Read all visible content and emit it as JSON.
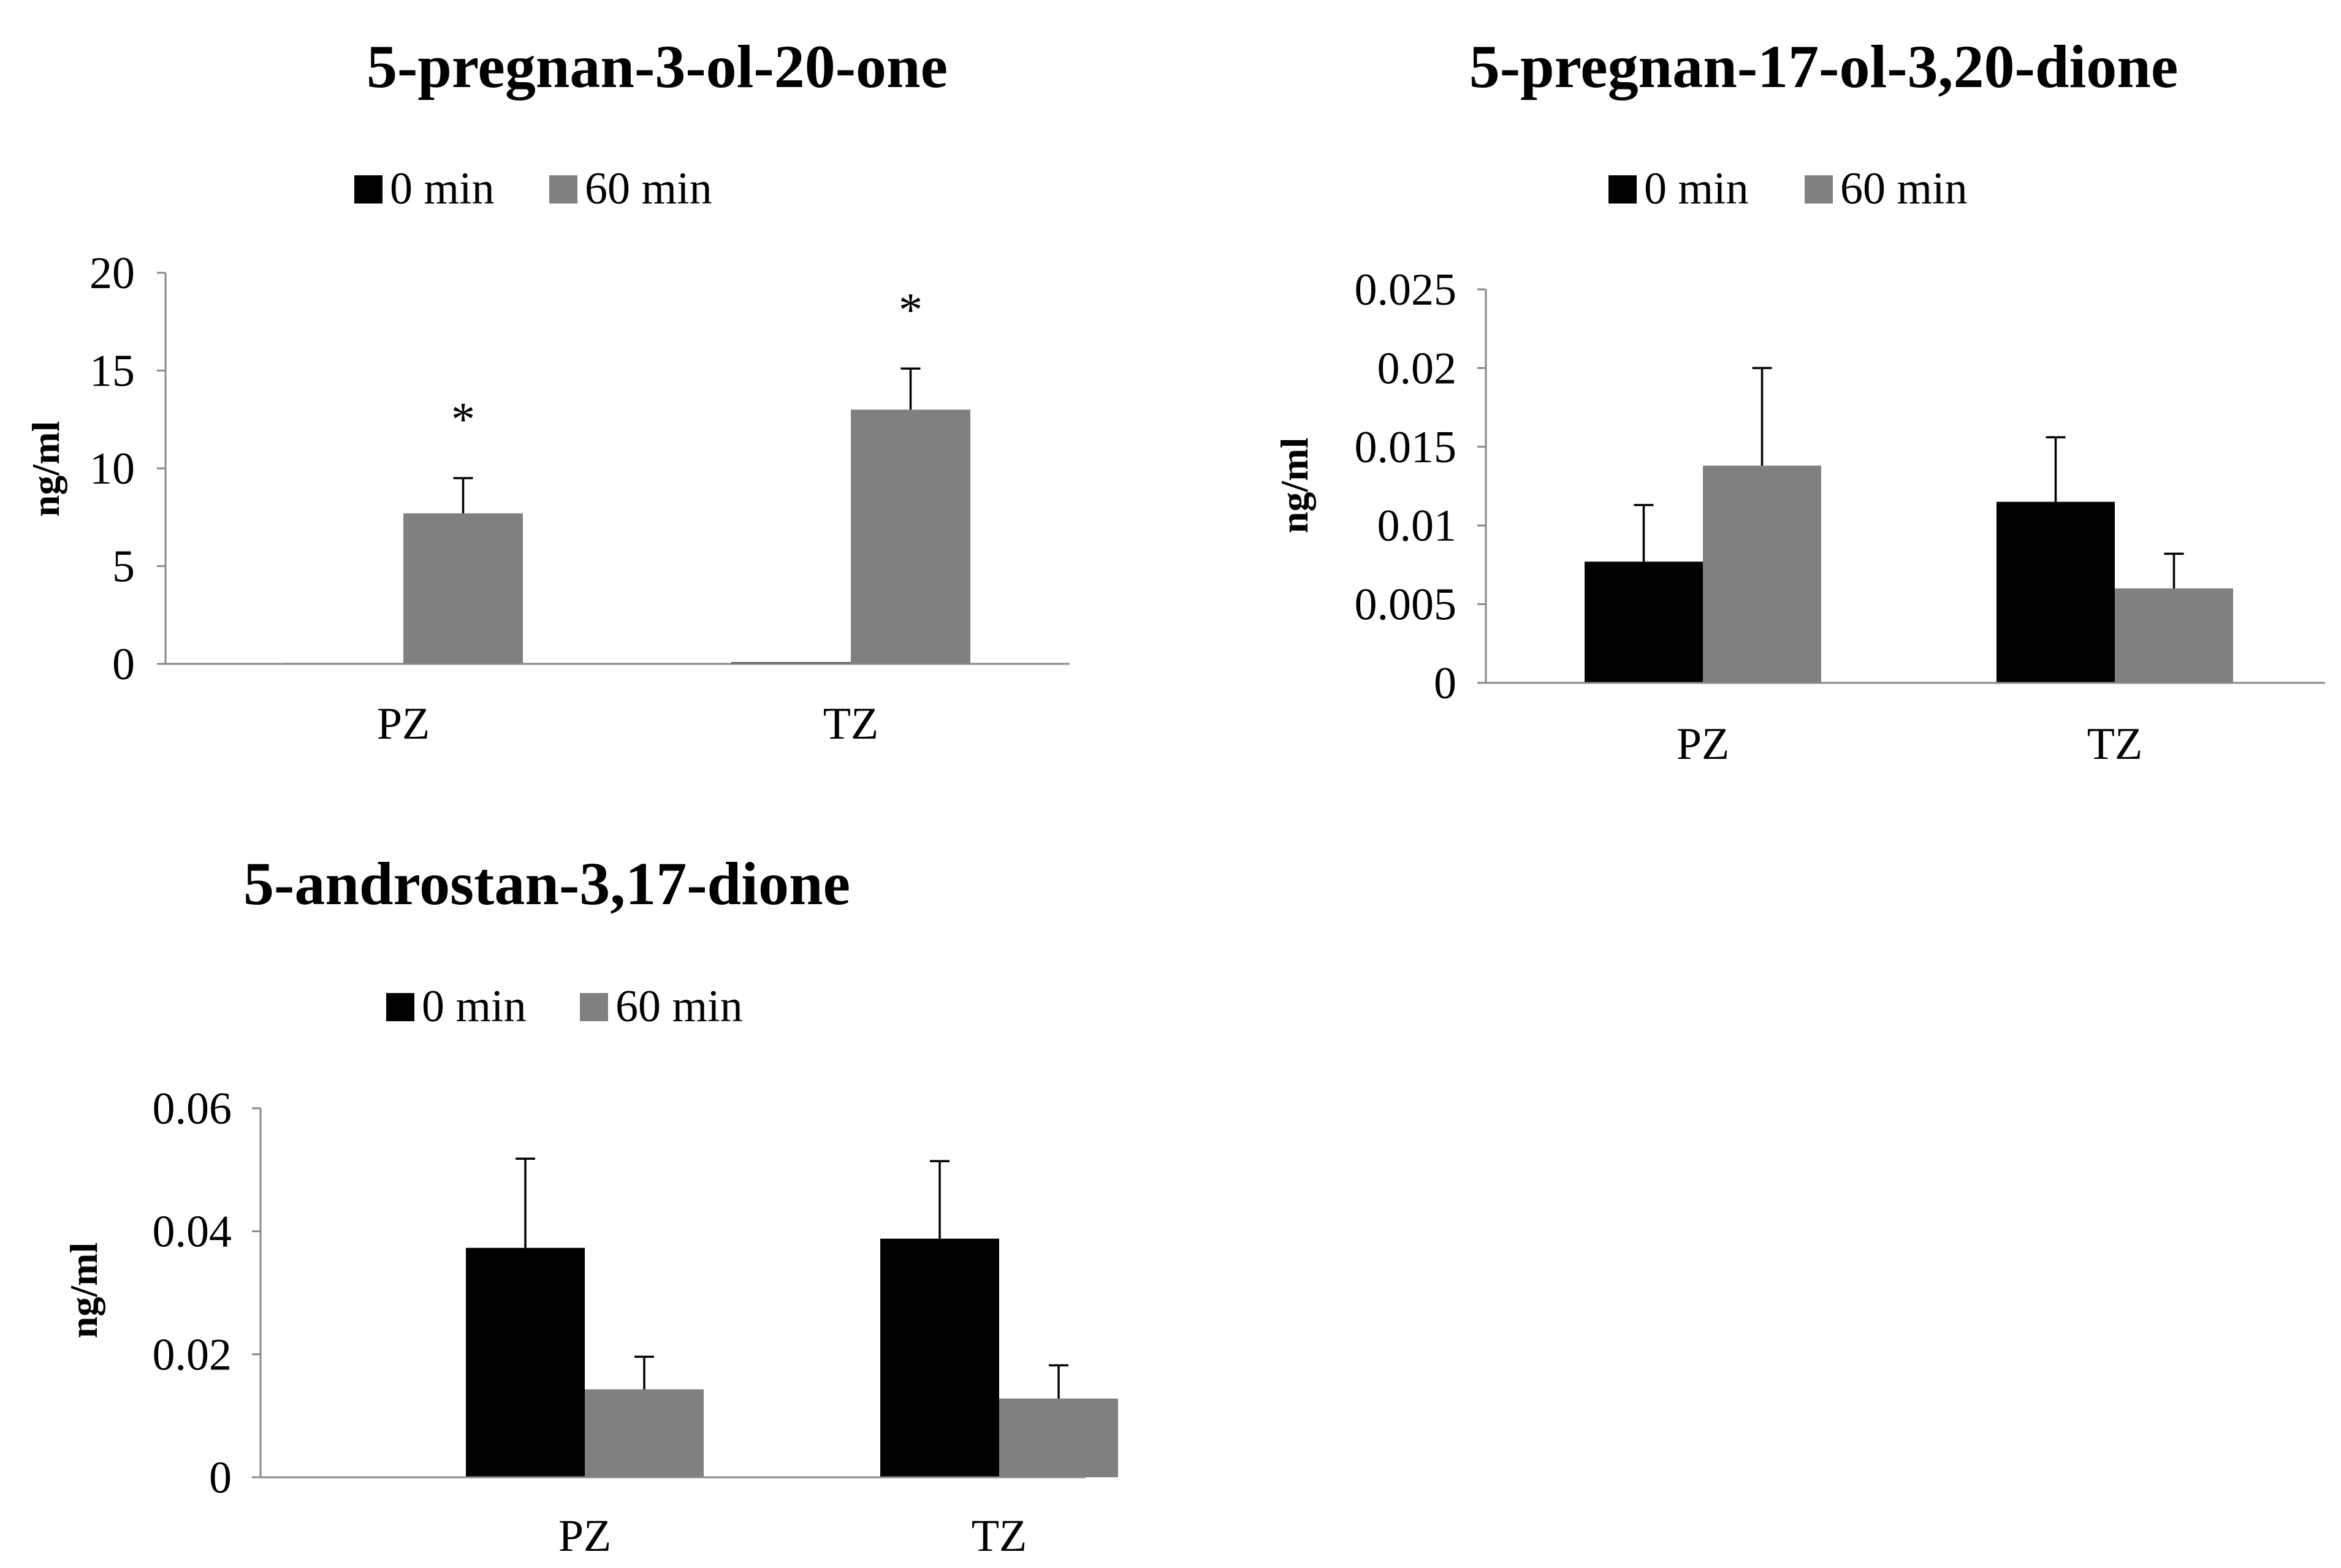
{
  "chart_data": [
    {
      "type": "bar",
      "title": "5-pregnan-3-ol-20-one",
      "xlabel": "",
      "ylabel": "ng/ml",
      "categories": [
        "PZ",
        "TZ"
      ],
      "ylim": [
        0,
        20
      ],
      "yticks": [
        "0",
        "5",
        "10",
        "15",
        "20"
      ],
      "ytick_values": [
        0,
        5,
        10,
        15,
        20
      ],
      "legend": "top-center",
      "series": [
        {
          "name": "0 min",
          "color": "#000000",
          "values": [
            0.05,
            0.08
          ],
          "errors": [
            0,
            0
          ]
        },
        {
          "name": "60 min",
          "color": "#808080",
          "values": [
            7.7,
            13.0
          ],
          "errors": [
            1.8,
            2.1
          ]
        }
      ],
      "annotations": [
        {
          "category": "PZ",
          "series": "60 min",
          "text": "*"
        },
        {
          "category": "TZ",
          "series": "60 min",
          "text": "*"
        }
      ]
    },
    {
      "type": "bar",
      "title": "5-pregnan-17-ol-3,20-dione",
      "xlabel": "",
      "ylabel": "ng/ml",
      "categories": [
        "PZ",
        "TZ"
      ],
      "ylim": [
        0,
        0.025
      ],
      "yticks": [
        "0",
        "0.005",
        "0.01",
        "0.015",
        "0.02",
        "0.025"
      ],
      "ytick_values": [
        0,
        0.005,
        0.01,
        0.015,
        0.02,
        0.025
      ],
      "legend": "top-center",
      "series": [
        {
          "name": "0 min",
          "color": "#000000",
          "values": [
            0.0077,
            0.0115
          ],
          "errors": [
            0.0036,
            0.0041
          ]
        },
        {
          "name": "60 min",
          "color": "#808080",
          "values": [
            0.0138,
            0.006
          ],
          "errors": [
            0.0062,
            0.0022
          ]
        }
      ],
      "annotations": []
    },
    {
      "type": "bar",
      "title": "5-androstan-3,17-dione",
      "xlabel": "",
      "ylabel": "ng/ml",
      "categories": [
        "PZ",
        "TZ"
      ],
      "ylim": [
        0,
        0.06
      ],
      "yticks": [
        "0",
        "0.02",
        "0.04",
        "0.06"
      ],
      "ytick_values": [
        0,
        0.02,
        0.04,
        0.06
      ],
      "legend": "top-center",
      "series": [
        {
          "name": "0 min",
          "color": "#000000",
          "values": [
            0.0373,
            0.0388
          ],
          "errors": [
            0.0145,
            0.0126
          ]
        },
        {
          "name": "60 min",
          "color": "#808080",
          "values": [
            0.0143,
            0.0128
          ],
          "errors": [
            0.0053,
            0.0054
          ]
        }
      ],
      "annotations": []
    }
  ]
}
